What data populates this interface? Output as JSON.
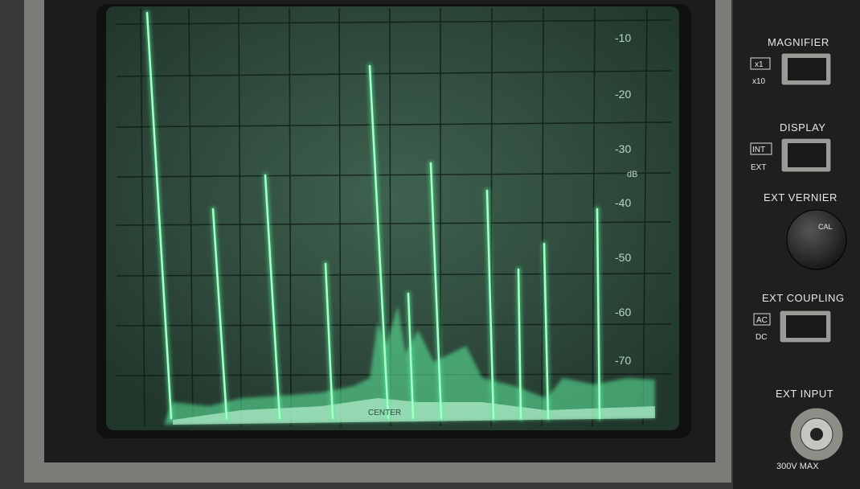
{
  "screen": {
    "scale_labels": [
      "-10",
      "-20",
      "-30",
      "-40",
      "-50",
      "-60",
      "-70"
    ],
    "unit": "dB",
    "center_label": "CENTER"
  },
  "controls": {
    "magnifier": {
      "label": "MAGNIFIER",
      "options": [
        "x1",
        "x10"
      ]
    },
    "display": {
      "label": "DISPLAY",
      "options": [
        "INT",
        "EXT"
      ]
    },
    "ext_vernier": {
      "label": "EXT VERNIER",
      "knob": "CAL"
    },
    "ext_coupling": {
      "label": "EXT COUPLING",
      "options": [
        "AC",
        "DC"
      ]
    },
    "ext_input": {
      "label": "EXT INPUT",
      "rating": "300V MAX"
    }
  }
}
